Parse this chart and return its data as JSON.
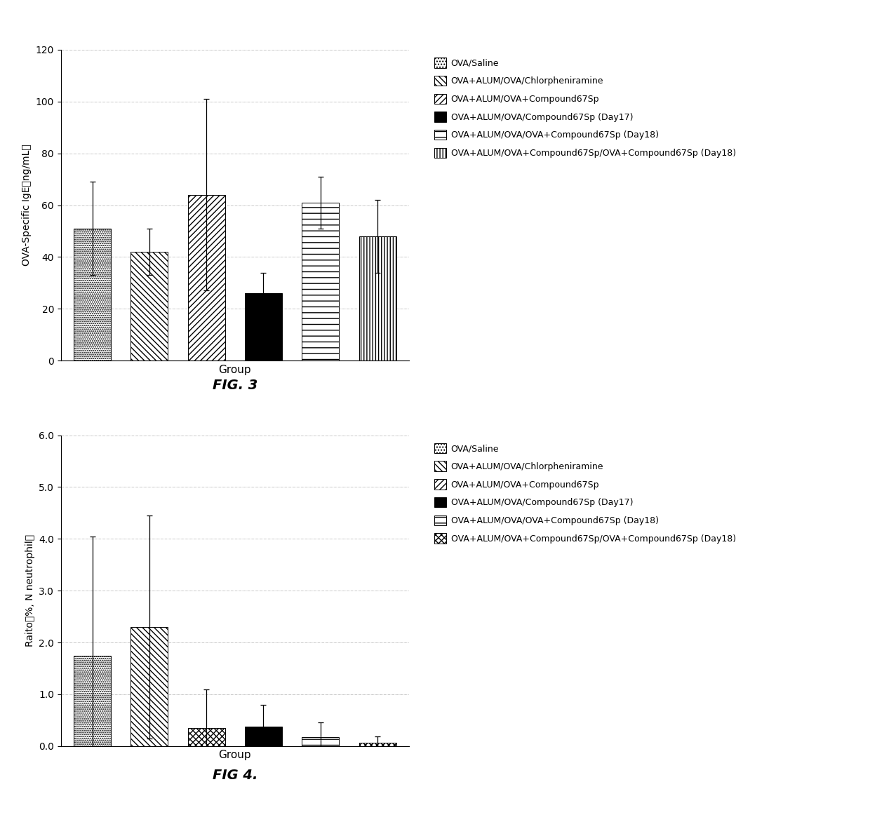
{
  "fig3": {
    "title": "FIG. 3",
    "ylabel": "OVA-Specific IgE（ng/mL）",
    "xlabel": "Group",
    "ylim": [
      0,
      120
    ],
    "yticks": [
      0,
      20,
      40,
      60,
      80,
      100,
      120
    ],
    "bar_values": [
      51,
      42,
      64,
      26,
      61,
      48
    ],
    "bar_errors": [
      18,
      9,
      37,
      8,
      10,
      14
    ],
    "legend_labels": [
      "OVA/Saline",
      "OVA+ALUM/OVA/Chlorpheniramine",
      "OVA+ALUM/OVA+Compound67Sp",
      "OVA+ALUM/OVA/Compound67Sp (Day17)",
      "OVA+ALUM/OVA/OVA+Compound67Sp (Day18)",
      "OVA+ALUM/OVA+Compound67Sp/OVA+Compound67Sp (Day18)"
    ]
  },
  "fig4": {
    "title": "FIG 4.",
    "ylabel": "Raito（%, N neutrophil）",
    "xlabel": "Group",
    "ylim": [
      0.0,
      6.0
    ],
    "yticks": [
      0.0,
      1.0,
      2.0,
      3.0,
      4.0,
      5.0,
      6.0
    ],
    "bar_values": [
      1.75,
      2.3,
      0.35,
      0.38,
      0.18,
      0.07
    ],
    "bar_errors": [
      2.3,
      2.15,
      0.75,
      0.42,
      0.28,
      0.12
    ],
    "legend_labels": [
      "OVA/Saline",
      "OVA+ALUM/OVA/Chlorpheniramine",
      "OVA+ALUM/OVA+Compound67Sp",
      "OVA+ALUM/OVA/Compound67Sp (Day17)",
      "OVA+ALUM/OVA/OVA+Compound67Sp (Day18)",
      "OVA+ALUM/OVA+Compound67Sp/OVA+Compound67Sp (Day18)"
    ]
  },
  "background_color": "#ffffff",
  "error_color": "#000000"
}
